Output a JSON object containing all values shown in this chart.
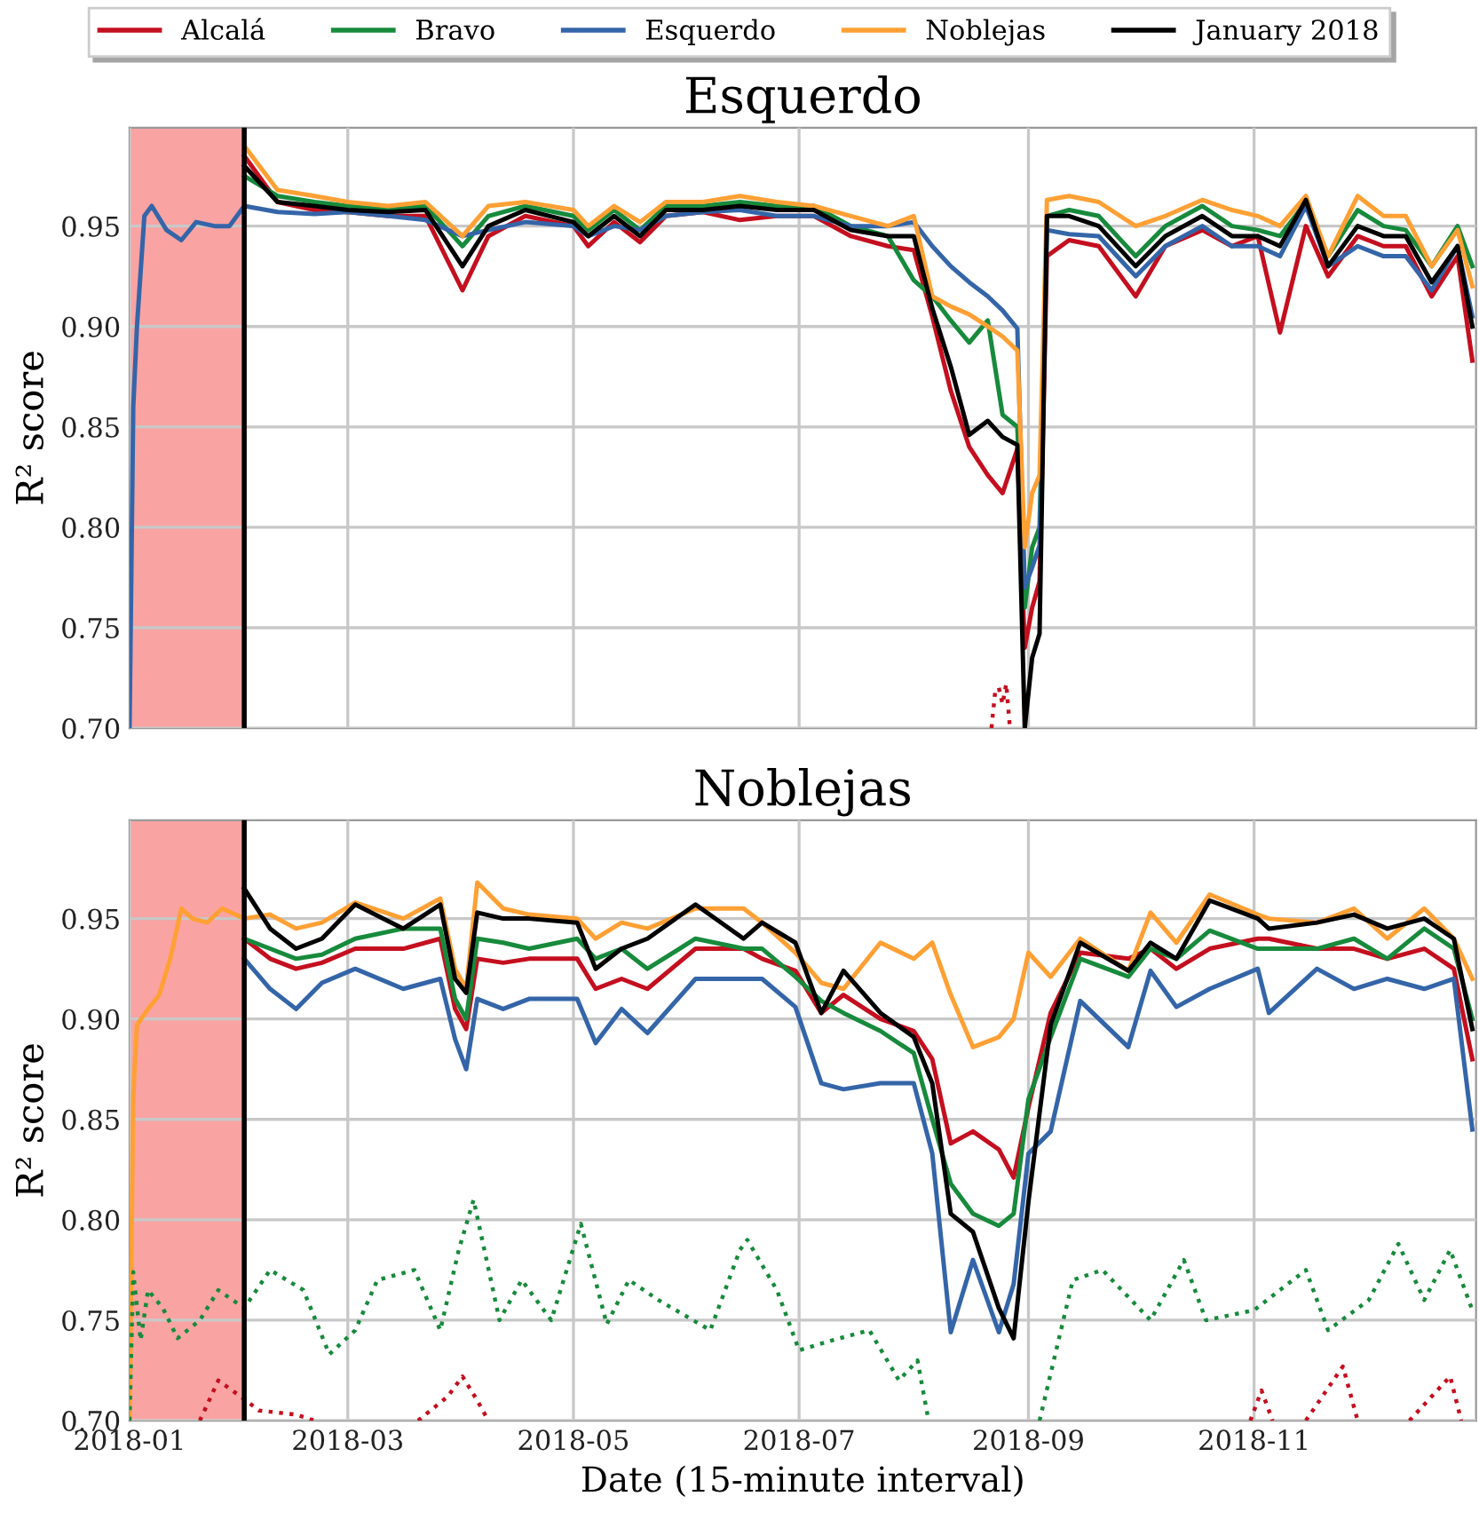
{
  "chart_data": [
    {
      "type": "line",
      "title": "Esquerdo",
      "ylabel": "R² score",
      "grid": true,
      "tick_labels": "y",
      "xlim": [
        "2018-01-01",
        "2018-12-31"
      ],
      "ylim": [
        0.7,
        0.999
      ],
      "xticks": [
        {
          "value": "2018-01-01",
          "label": null
        },
        {
          "value": "2018-03-01",
          "label": null
        },
        {
          "value": "2018-05-01",
          "label": null
        },
        {
          "value": "2018-07-01",
          "label": null
        },
        {
          "value": "2018-09-01",
          "label": null
        },
        {
          "value": "2018-11-01",
          "label": null
        }
      ],
      "yticks": [
        {
          "value": 0.7,
          "label": "0.70"
        },
        0.75,
        {
          "value": 0.8,
          "label": "0.80"
        },
        0.85,
        {
          "value": 0.9,
          "label": "0.90"
        },
        0.95
      ],
      "bands": [
        {
          "axis": "x",
          "from": "2018-01-01",
          "to": "2018-02-01",
          "color": "#f9a3a3"
        }
      ],
      "ref_lines": [
        {
          "axis": "x",
          "value": "2018-02-01",
          "color": "#000000",
          "line_style": "solid"
        }
      ],
      "x": [
        "2018-02-01",
        "2018-02-10",
        "2018-02-20",
        "2018-03-01",
        "2018-03-12",
        "2018-03-22",
        "2018-04-01",
        "2018-04-08",
        "2018-04-18",
        "2018-05-01",
        "2018-05-05",
        "2018-05-12",
        "2018-05-19",
        "2018-05-26",
        "2018-06-05",
        "2018-06-15",
        "2018-06-25",
        "2018-07-05",
        "2018-07-15",
        "2018-07-25",
        "2018-08-01",
        "2018-08-06",
        "2018-08-11",
        "2018-08-16",
        "2018-08-21",
        "2018-08-25",
        "2018-08-29",
        "2018-08-31",
        "2018-09-02",
        "2018-09-04",
        "2018-09-06",
        "2018-09-12",
        "2018-09-20",
        "2018-09-30",
        "2018-10-08",
        "2018-10-18",
        "2018-10-26",
        "2018-11-02",
        "2018-11-08",
        "2018-11-15",
        "2018-11-21",
        "2018-11-29",
        "2018-12-06",
        "2018-12-12",
        "2018-12-19",
        "2018-12-26",
        "2018-12-30"
      ],
      "series": [
        {
          "color": "#c40f1f",
          "values": [
            0.985,
            0.962,
            0.958,
            0.957,
            0.955,
            0.955,
            0.918,
            0.945,
            0.955,
            0.95,
            0.94,
            0.952,
            0.942,
            0.955,
            0.957,
            0.953,
            0.955,
            0.955,
            0.945,
            0.94,
            0.938,
            0.905,
            0.868,
            0.84,
            0.826,
            0.817,
            0.839,
            0.74,
            0.76,
            0.773,
            0.935,
            0.943,
            0.94,
            0.915,
            0.94,
            0.948,
            0.94,
            0.945,
            0.897,
            0.95,
            0.925,
            0.945,
            0.94,
            0.94,
            0.915,
            0.935,
            0.883
          ]
        },
        {
          "color": "#178a3c",
          "values": [
            0.975,
            0.965,
            0.962,
            0.96,
            0.958,
            0.96,
            0.94,
            0.955,
            0.96,
            0.955,
            0.948,
            0.958,
            0.948,
            0.96,
            0.96,
            0.962,
            0.96,
            0.96,
            0.95,
            0.945,
            0.923,
            0.915,
            0.903,
            0.892,
            0.903,
            0.856,
            0.85,
            0.76,
            0.79,
            0.8,
            0.955,
            0.958,
            0.955,
            0.935,
            0.95,
            0.96,
            0.95,
            0.948,
            0.945,
            0.962,
            0.935,
            0.958,
            0.95,
            0.948,
            0.93,
            0.95,
            0.93
          ]
        },
        {
          "color": "#3465a8",
          "x": [
            "2018-01-01",
            "2018-01-02",
            "2018-01-03",
            "2018-01-05",
            "2018-01-07",
            "2018-01-11",
            "2018-01-15",
            "2018-01-19",
            "2018-01-24",
            "2018-01-28",
            "2018-02-01",
            "2018-02-10",
            "2018-02-20",
            "2018-03-01",
            "2018-03-12",
            "2018-03-22",
            "2018-04-01",
            "2018-04-08",
            "2018-04-18",
            "2018-05-01",
            "2018-05-05",
            "2018-05-12",
            "2018-05-19",
            "2018-05-26",
            "2018-06-05",
            "2018-06-15",
            "2018-06-25",
            "2018-07-05",
            "2018-07-15",
            "2018-07-25",
            "2018-08-01",
            "2018-08-06",
            "2018-08-11",
            "2018-08-16",
            "2018-08-21",
            "2018-08-25",
            "2018-08-29",
            "2018-08-31",
            "2018-09-02",
            "2018-09-04",
            "2018-09-06",
            "2018-09-12",
            "2018-09-20",
            "2018-09-30",
            "2018-10-08",
            "2018-10-18",
            "2018-10-26",
            "2018-11-02",
            "2018-11-08",
            "2018-11-15",
            "2018-11-21",
            "2018-11-29",
            "2018-12-06",
            "2018-12-12",
            "2018-12-19",
            "2018-12-26",
            "2018-12-30"
          ],
          "values": [
            0.7,
            0.86,
            0.9,
            0.955,
            0.96,
            0.948,
            0.943,
            0.952,
            0.95,
            0.95,
            0.96,
            0.957,
            0.956,
            0.957,
            0.955,
            0.953,
            0.945,
            0.948,
            0.952,
            0.95,
            0.945,
            0.95,
            0.948,
            0.955,
            0.957,
            0.958,
            0.955,
            0.955,
            0.95,
            0.95,
            0.952,
            0.94,
            0.93,
            0.922,
            0.915,
            0.908,
            0.899,
            0.77,
            0.78,
            0.791,
            0.948,
            0.946,
            0.945,
            0.925,
            0.94,
            0.95,
            0.94,
            0.94,
            0.935,
            0.96,
            0.93,
            0.94,
            0.935,
            0.935,
            0.918,
            0.94,
            0.905
          ]
        },
        {
          "color": "#ffa035",
          "values": [
            0.99,
            0.968,
            0.965,
            0.962,
            0.96,
            0.962,
            0.945,
            0.96,
            0.962,
            0.958,
            0.95,
            0.96,
            0.952,
            0.962,
            0.962,
            0.965,
            0.962,
            0.96,
            0.955,
            0.95,
            0.955,
            0.915,
            0.91,
            0.906,
            0.9,
            0.895,
            0.888,
            0.79,
            0.817,
            0.826,
            0.963,
            0.965,
            0.962,
            0.95,
            0.955,
            0.963,
            0.958,
            0.955,
            0.95,
            0.965,
            0.935,
            0.965,
            0.955,
            0.955,
            0.93,
            0.948,
            0.92
          ]
        },
        {
          "color": "#000000",
          "values": [
            0.98,
            0.962,
            0.96,
            0.958,
            0.957,
            0.958,
            0.93,
            0.95,
            0.958,
            0.952,
            0.945,
            0.955,
            0.945,
            0.958,
            0.958,
            0.96,
            0.958,
            0.958,
            0.948,
            0.945,
            0.945,
            0.909,
            0.88,
            0.846,
            0.853,
            0.845,
            0.841,
            0.7,
            0.735,
            0.747,
            0.955,
            0.955,
            0.95,
            0.93,
            0.945,
            0.955,
            0.945,
            0.945,
            0.94,
            0.963,
            0.93,
            0.95,
            0.945,
            0.945,
            0.922,
            0.94,
            0.9
          ]
        },
        {
          "color": "#c40f1f",
          "line_style": "dotted",
          "x": [
            "2018-08-22",
            "2018-08-23",
            "2018-08-24",
            "2018-08-25",
            "2018-08-26",
            "2018-08-27"
          ],
          "values": [
            0.7,
            0.718,
            0.72,
            0.712,
            0.722,
            0.7
          ]
        }
      ]
    },
    {
      "type": "line",
      "title": "Noblejas",
      "xlabel": "Date (15-minute interval)",
      "ylabel": "R² score",
      "legend": "top",
      "grid": true,
      "xlim": [
        "2018-01-01",
        "2018-12-31"
      ],
      "ylim": [
        0.7,
        0.999
      ],
      "xticks": [
        {
          "value": "2018-01-01",
          "label": "2018-01"
        },
        {
          "value": "2018-03-01",
          "label": "2018-03"
        },
        {
          "value": "2018-05-01",
          "label": "2018-05"
        },
        {
          "value": "2018-07-01",
          "label": "2018-07"
        },
        {
          "value": "2018-09-01",
          "label": "2018-09"
        },
        {
          "value": "2018-11-01",
          "label": "2018-11"
        }
      ],
      "yticks": [
        {
          "value": 0.7,
          "label": "0.70"
        },
        0.75,
        {
          "value": 0.8,
          "label": "0.80"
        },
        0.85,
        {
          "value": 0.9,
          "label": "0.90"
        },
        0.95
      ],
      "bands": [
        {
          "axis": "x",
          "from": "2018-01-01",
          "to": "2018-02-01",
          "color": "#f9a3a3"
        }
      ],
      "ref_lines": [
        {
          "axis": "x",
          "value": "2018-02-01",
          "color": "#000000",
          "line_style": "solid"
        }
      ],
      "x": [
        "2018-02-01",
        "2018-02-08",
        "2018-02-15",
        "2018-02-22",
        "2018-03-03",
        "2018-03-16",
        "2018-03-26",
        "2018-03-30",
        "2018-04-02",
        "2018-04-05",
        "2018-04-12",
        "2018-04-19",
        "2018-05-02",
        "2018-05-07",
        "2018-05-14",
        "2018-05-21",
        "2018-06-03",
        "2018-06-16",
        "2018-06-21",
        "2018-06-30",
        "2018-07-07",
        "2018-07-13",
        "2018-07-23",
        "2018-08-01",
        "2018-08-06",
        "2018-08-11",
        "2018-08-17",
        "2018-08-24",
        "2018-08-28",
        "2018-09-01",
        "2018-09-07",
        "2018-09-15",
        "2018-09-28",
        "2018-10-04",
        "2018-10-11",
        "2018-10-20",
        "2018-11-02",
        "2018-11-05",
        "2018-11-18",
        "2018-11-28",
        "2018-12-07",
        "2018-12-17",
        "2018-12-25",
        "2018-12-30"
      ],
      "series": [
        {
          "name": "Alcalá",
          "color": "#c40f1f",
          "values": [
            0.94,
            0.93,
            0.925,
            0.928,
            0.935,
            0.935,
            0.94,
            0.905,
            0.895,
            0.93,
            0.928,
            0.93,
            0.93,
            0.915,
            0.92,
            0.915,
            0.935,
            0.935,
            0.93,
            0.924,
            0.903,
            0.912,
            0.9,
            0.894,
            0.88,
            0.838,
            0.844,
            0.835,
            0.821,
            0.856,
            0.903,
            0.933,
            0.93,
            0.935,
            0.925,
            0.935,
            0.94,
            0.94,
            0.935,
            0.935,
            0.93,
            0.935,
            0.925,
            0.88
          ]
        },
        {
          "name": "Bravo",
          "color": "#178a3c",
          "values": [
            0.94,
            0.935,
            0.93,
            0.932,
            0.94,
            0.945,
            0.945,
            0.91,
            0.9,
            0.94,
            0.938,
            0.935,
            0.94,
            0.93,
            0.935,
            0.925,
            0.94,
            0.935,
            0.935,
            0.921,
            0.909,
            0.903,
            0.894,
            0.883,
            0.85,
            0.818,
            0.803,
            0.797,
            0.803,
            0.86,
            0.891,
            0.93,
            0.921,
            0.935,
            0.93,
            0.944,
            0.935,
            0.935,
            0.935,
            0.94,
            0.93,
            0.945,
            0.935,
            0.9
          ]
        },
        {
          "name": "Esquerdo",
          "color": "#3465a8",
          "values": [
            0.93,
            0.915,
            0.905,
            0.918,
            0.925,
            0.915,
            0.92,
            0.89,
            0.875,
            0.91,
            0.905,
            0.91,
            0.91,
            0.888,
            0.905,
            0.893,
            0.92,
            0.92,
            0.92,
            0.906,
            0.868,
            0.865,
            0.868,
            0.868,
            0.833,
            0.744,
            0.78,
            0.744,
            0.768,
            0.833,
            0.844,
            0.909,
            0.886,
            0.924,
            0.906,
            0.915,
            0.925,
            0.903,
            0.925,
            0.915,
            0.92,
            0.915,
            0.92,
            0.845
          ]
        },
        {
          "name": "Noblejas",
          "color": "#ffa035",
          "x": [
            "2018-01-01",
            "2018-01-02",
            "2018-01-03",
            "2018-01-06",
            "2018-01-09",
            "2018-01-12",
            "2018-01-15",
            "2018-01-18",
            "2018-01-22",
            "2018-01-26",
            "2018-02-01",
            "2018-02-08",
            "2018-02-15",
            "2018-02-22",
            "2018-03-03",
            "2018-03-16",
            "2018-03-26",
            "2018-03-30",
            "2018-04-02",
            "2018-04-05",
            "2018-04-12",
            "2018-04-19",
            "2018-05-02",
            "2018-05-07",
            "2018-05-14",
            "2018-05-21",
            "2018-06-03",
            "2018-06-16",
            "2018-06-21",
            "2018-06-30",
            "2018-07-07",
            "2018-07-13",
            "2018-07-23",
            "2018-08-01",
            "2018-08-06",
            "2018-08-11",
            "2018-08-17",
            "2018-08-24",
            "2018-08-28",
            "2018-09-01",
            "2018-09-07",
            "2018-09-15",
            "2018-09-28",
            "2018-10-04",
            "2018-10-11",
            "2018-10-20",
            "2018-11-02",
            "2018-11-05",
            "2018-11-18",
            "2018-11-28",
            "2018-12-07",
            "2018-12-17",
            "2018-12-25",
            "2018-12-30"
          ],
          "values": [
            0.7,
            0.862,
            0.897,
            0.905,
            0.912,
            0.93,
            0.955,
            0.95,
            0.948,
            0.955,
            0.95,
            0.952,
            0.945,
            0.948,
            0.958,
            0.95,
            0.96,
            0.925,
            0.915,
            0.968,
            0.955,
            0.952,
            0.95,
            0.94,
            0.948,
            0.945,
            0.955,
            0.955,
            0.948,
            0.933,
            0.918,
            0.915,
            0.938,
            0.93,
            0.938,
            0.912,
            0.886,
            0.891,
            0.9,
            0.933,
            0.921,
            0.94,
            0.924,
            0.953,
            0.938,
            0.962,
            0.952,
            0.95,
            0.948,
            0.955,
            0.94,
            0.955,
            0.94,
            0.92
          ]
        },
        {
          "name": "January 2018",
          "color": "#000000",
          "values": [
            0.965,
            0.945,
            0.935,
            0.94,
            0.957,
            0.945,
            0.957,
            0.92,
            0.913,
            0.953,
            0.95,
            0.95,
            0.948,
            0.925,
            0.935,
            0.94,
            0.957,
            0.94,
            0.948,
            0.938,
            0.903,
            0.924,
            0.903,
            0.891,
            0.868,
            0.803,
            0.794,
            0.756,
            0.741,
            0.809,
            0.897,
            0.938,
            0.924,
            0.938,
            0.93,
            0.959,
            0.95,
            0.945,
            0.948,
            0.952,
            0.945,
            0.95,
            0.94,
            0.895
          ]
        },
        {
          "color": "#178a3c",
          "line_style": "dotted",
          "x": [
            "2018-01-01",
            "2018-01-02",
            "2018-01-04",
            "2018-01-06",
            "2018-01-10",
            "2018-01-14",
            "2018-01-20",
            "2018-01-25",
            "2018-02-01",
            "2018-02-08",
            "2018-02-17",
            "2018-02-24",
            "2018-03-03",
            "2018-03-09",
            "2018-03-19",
            "2018-03-26",
            "2018-03-31",
            "2018-04-04",
            "2018-04-11",
            "2018-04-17",
            "2018-04-25",
            "2018-05-03",
            "2018-05-10",
            "2018-05-16",
            "2018-05-24",
            "2018-06-07",
            "2018-06-15",
            "2018-06-17",
            "2018-06-25",
            "2018-07-01",
            "2018-07-10",
            "2018-07-20",
            "2018-07-28",
            "2018-08-02",
            "2018-08-05",
            "2018-08-20",
            "2018-09-04",
            "2018-09-13",
            "2018-09-21",
            "2018-10-04",
            "2018-10-13",
            "2018-10-19",
            "2018-11-01",
            "2018-11-15",
            "2018-11-21",
            "2018-12-02",
            "2018-12-10",
            "2018-12-17",
            "2018-12-24",
            "2018-12-30"
          ],
          "values": [
            0.7,
            0.774,
            0.74,
            0.765,
            0.756,
            0.741,
            0.75,
            0.765,
            0.756,
            0.775,
            0.765,
            0.733,
            0.745,
            0.77,
            0.775,
            0.745,
            0.785,
            0.81,
            0.75,
            0.77,
            0.75,
            0.798,
            0.748,
            0.77,
            0.76,
            0.745,
            0.785,
            0.79,
            0.765,
            0.735,
            0.74,
            0.745,
            0.72,
            0.73,
            0.7,
            null,
            0.7,
            0.77,
            0.775,
            0.75,
            0.78,
            0.75,
            0.755,
            0.775,
            0.745,
            0.76,
            0.788,
            0.76,
            0.785,
            0.755
          ]
        },
        {
          "color": "#c40f1f",
          "line_style": "dotted",
          "x": [
            "2018-01-20",
            "2018-01-25",
            "2018-01-31",
            "2018-02-05",
            "2018-02-15",
            "2018-02-20",
            "2018-02-25",
            "2018-03-20",
            "2018-03-28",
            "2018-04-01",
            "2018-04-05",
            "2018-04-08",
            "2018-04-20",
            "2018-10-31",
            "2018-11-03",
            "2018-11-06",
            "2018-11-10",
            "2018-11-15",
            "2018-11-25",
            "2018-11-29",
            "2018-12-05",
            "2018-12-13",
            "2018-12-24",
            "2018-12-27"
          ],
          "values": [
            0.7,
            0.72,
            0.712,
            0.705,
            0.703,
            0.7,
            null,
            0.7,
            0.712,
            0.722,
            0.71,
            0.7,
            null,
            0.7,
            0.715,
            0.7,
            null,
            0.7,
            0.727,
            0.7,
            null,
            0.7,
            0.722,
            0.7
          ]
        }
      ]
    }
  ]
}
